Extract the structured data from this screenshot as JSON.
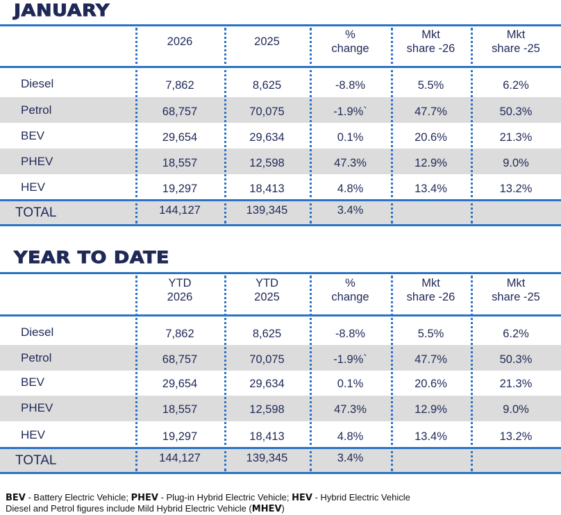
{
  "sections": [
    {
      "title": "JANUARY",
      "headers": [
        [
          "2026"
        ],
        [
          "2025"
        ],
        [
          "%",
          "change"
        ],
        [
          "Mkt",
          "share -26"
        ],
        [
          "Mkt",
          "share -25"
        ]
      ],
      "rows": [
        {
          "label": "Diesel",
          "values": [
            "7,862",
            "8,625",
            "-8.8%",
            "5.5%",
            "6.2%"
          ],
          "shaded": false
        },
        {
          "label": "Petrol",
          "values": [
            "68,757",
            "70,075",
            "-1.9%`",
            "47.7%",
            "50.3%"
          ],
          "shaded": true
        },
        {
          "label": "BEV",
          "values": [
            "29,654",
            "29,634",
            "0.1%",
            "20.6%",
            "21.3%"
          ],
          "shaded": false
        },
        {
          "label": "PHEV",
          "values": [
            "18,557",
            "12,598",
            "47.3%",
            "12.9%",
            "9.0%"
          ],
          "shaded": true
        },
        {
          "label": "HEV",
          "values": [
            "19,297",
            "18,413",
            "4.8%",
            "13.4%",
            "13.2%"
          ],
          "shaded": false
        }
      ],
      "total": {
        "label": "TOTAL",
        "values": [
          "144,127",
          "139,345",
          "3.4%",
          "",
          ""
        ]
      }
    },
    {
      "title": "YEAR TO DATE",
      "headers": [
        [
          "YTD",
          "2026"
        ],
        [
          "YTD",
          "2025"
        ],
        [
          "%",
          "change"
        ],
        [
          "Mkt",
          "share -26"
        ],
        [
          "Mkt",
          "share -25"
        ]
      ],
      "rows": [
        {
          "label": "Diesel",
          "values": [
            "7,862",
            "8,625",
            "-8.8%",
            "5.5%",
            "6.2%"
          ],
          "shaded": false
        },
        {
          "label": "Petrol",
          "values": [
            "68,757",
            "70,075",
            "-1.9%`",
            "47.7%",
            "50.3%"
          ],
          "shaded": true
        },
        {
          "label": "BEV",
          "values": [
            "29,654",
            "29,634",
            "0.1%",
            "20.6%",
            "21.3%"
          ],
          "shaded": false
        },
        {
          "label": "PHEV",
          "values": [
            "18,557",
            "12,598",
            "47.3%",
            "12.9%",
            "9.0%"
          ],
          "shaded": true
        },
        {
          "label": "HEV",
          "values": [
            "19,297",
            "18,413",
            "4.8%",
            "13.4%",
            "13.2%"
          ],
          "shaded": false
        }
      ],
      "total": {
        "label": "TOTAL",
        "values": [
          "144,127",
          "139,345",
          "3.4%",
          "",
          ""
        ]
      }
    }
  ],
  "footnote": {
    "line1": [
      {
        "bold": "BEV",
        "text": " - Battery Electric Vehicle; "
      },
      {
        "bold": "PHEV",
        "text": " - Plug-in Hybrid Electric Vehicle; "
      },
      {
        "bold": "HEV",
        "text": " - Hybrid Electric Vehicle"
      }
    ],
    "line2_text": "Diesel and Petrol figures include Mild Hybrid Electric Vehicle (",
    "line2_bold": "MHEV",
    "line2_end": ")"
  },
  "colors": {
    "navy": "#1f2857",
    "accent_blue": "#2a72c4",
    "shade_grey": "#dcdcdc"
  }
}
